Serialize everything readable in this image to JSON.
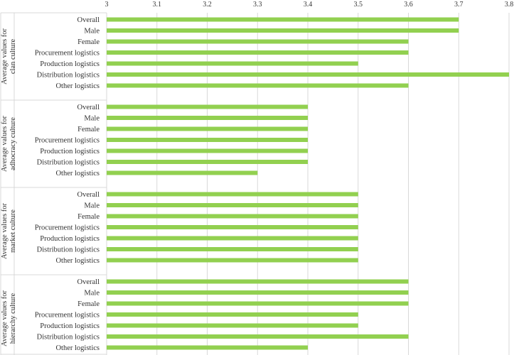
{
  "chart_data": {
    "type": "bar",
    "orientation": "horizontal",
    "xlim": [
      3,
      3.8
    ],
    "xticks": [
      "3",
      "3.1",
      "3.2",
      "3.3",
      "3.4",
      "3.5",
      "3.6",
      "3.7",
      "3.8"
    ],
    "grid": true,
    "bar_color": "#92d050",
    "groups": [
      {
        "label": "Average values for clan culture",
        "categories": [
          "Overall",
          "Male",
          "Female",
          "Procurement logistics",
          "Production logistics",
          "Distribution logistics",
          "Other logistics"
        ],
        "values": [
          3.7,
          3.7,
          3.6,
          3.6,
          3.5,
          3.8,
          3.6
        ]
      },
      {
        "label": "Average values for adhocracy culture",
        "categories": [
          "Overall",
          "Male",
          "Female",
          "Procurement logistics",
          "Production logistics",
          "Distribution logistics",
          "Other logistics"
        ],
        "values": [
          3.4,
          3.4,
          3.4,
          3.4,
          3.4,
          3.4,
          3.3
        ]
      },
      {
        "label": "Average values for market culture",
        "categories": [
          "Overall",
          "Male",
          "Female",
          "Procurement logistics",
          "Production logistics",
          "Distribution logistics",
          "Other logistics"
        ],
        "values": [
          3.5,
          3.5,
          3.5,
          3.5,
          3.5,
          3.5,
          3.5
        ]
      },
      {
        "label": "Average values for hierarchy culture",
        "categories": [
          "Overall",
          "Male",
          "Female",
          "Procurement logistics",
          "Production logistics",
          "Distribution logistics",
          "Other logistics"
        ],
        "values": [
          3.6,
          3.6,
          3.6,
          3.5,
          3.5,
          3.6,
          3.4
        ]
      }
    ]
  }
}
